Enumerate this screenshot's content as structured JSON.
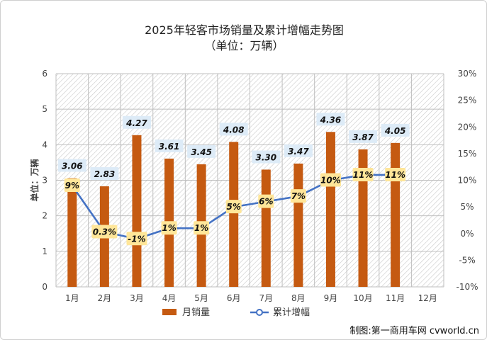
{
  "chart_data": {
    "type": "bar",
    "title": "2025年轻客市场销量及累计增幅走势图",
    "subtitle": "（单位：万辆）",
    "ylabel": "单位：万辆",
    "categories": [
      "1月",
      "2月",
      "3月",
      "4月",
      "5月",
      "6月",
      "7月",
      "8月",
      "9月",
      "10月",
      "11月",
      "12月"
    ],
    "ylim": [
      0,
      6
    ],
    "yticks": [
      "0",
      "1",
      "2",
      "3",
      "4",
      "5",
      "6"
    ],
    "y2lim": [
      -10,
      30
    ],
    "y2ticks": [
      "-10%",
      "-5%",
      "0%",
      "5%",
      "10%",
      "15%",
      "20%",
      "25%",
      "30%"
    ],
    "series": [
      {
        "name": "月销量",
        "type": "bar",
        "axis": "left",
        "color": "#c55a11",
        "values": [
          3.06,
          2.83,
          4.27,
          3.61,
          3.45,
          4.08,
          3.3,
          3.47,
          4.36,
          3.87,
          4.05,
          null
        ],
        "labels": [
          "3.06",
          "2.83",
          "4.27",
          "3.61",
          "3.45",
          "4.08",
          "3.30",
          "3.47",
          "4.36",
          "3.87",
          "4.05",
          ""
        ]
      },
      {
        "name": "累计增幅",
        "type": "line",
        "axis": "right",
        "color": "#4472c4",
        "values": [
          9,
          0.3,
          -1,
          1,
          1,
          5,
          6,
          7,
          10,
          11,
          11,
          null
        ],
        "labels": [
          "9%",
          "0.3%",
          "-1%",
          "1%",
          "1%",
          "5%",
          "6%",
          "7%",
          "10%",
          "11%",
          "11%",
          ""
        ]
      }
    ],
    "legend_position": "bottom",
    "grid": true
  },
  "credit": "制图:第一商用车网 cvworld.cn"
}
